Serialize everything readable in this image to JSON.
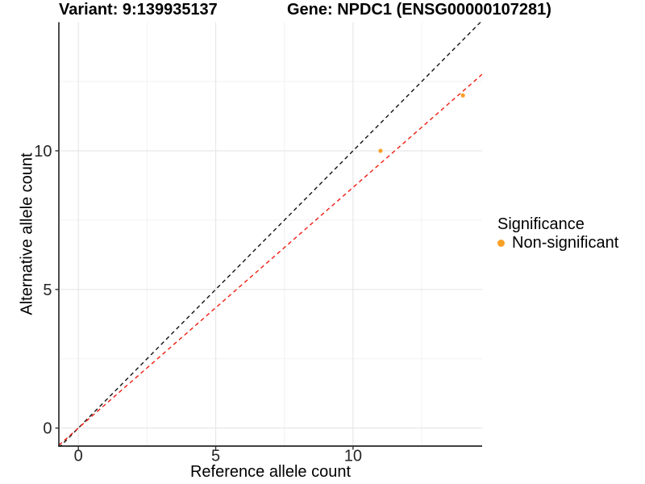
{
  "chart_data": {
    "type": "scatter",
    "title_variant": "Variant: 9:139935137",
    "title_gene": "Gene: NPDC1 (ENSG00000107281)",
    "xlabel": "Reference allele count",
    "ylabel": "Alternative allele count",
    "xlim": [
      -0.71,
      14.7
    ],
    "ylim": [
      -0.65,
      14.64
    ],
    "x_ticks": [
      0,
      5,
      10
    ],
    "y_ticks": [
      0,
      5,
      10
    ],
    "x_minor_ticks": [
      2.5,
      7.5,
      12.5
    ],
    "y_minor_ticks": [
      2.5,
      7.5,
      12.5
    ],
    "grid": true,
    "points": [
      {
        "x": 11,
        "y": 10,
        "group": "Non-significant"
      },
      {
        "x": 14,
        "y": 12,
        "group": "Non-significant"
      }
    ],
    "point_color": "#F9A026",
    "lines": [
      {
        "name": "identity-line",
        "slope": 1.0,
        "intercept": 0,
        "color": "#111111",
        "style": "dashed"
      },
      {
        "name": "expected-ratio-line",
        "slope": 0.868,
        "intercept": 0,
        "color": "#F01D10",
        "style": "dashed"
      }
    ],
    "legend": {
      "position": "right",
      "title": "Significance",
      "items": [
        {
          "label": "Non-significant",
          "color": "#F9A026"
        }
      ]
    },
    "colors": {
      "axis_line": "#000000",
      "tick_mark": "#333333",
      "tick_label": "#262626",
      "grid_major": "#E7E7E7",
      "grid_minor": "#F2F2F2"
    }
  }
}
